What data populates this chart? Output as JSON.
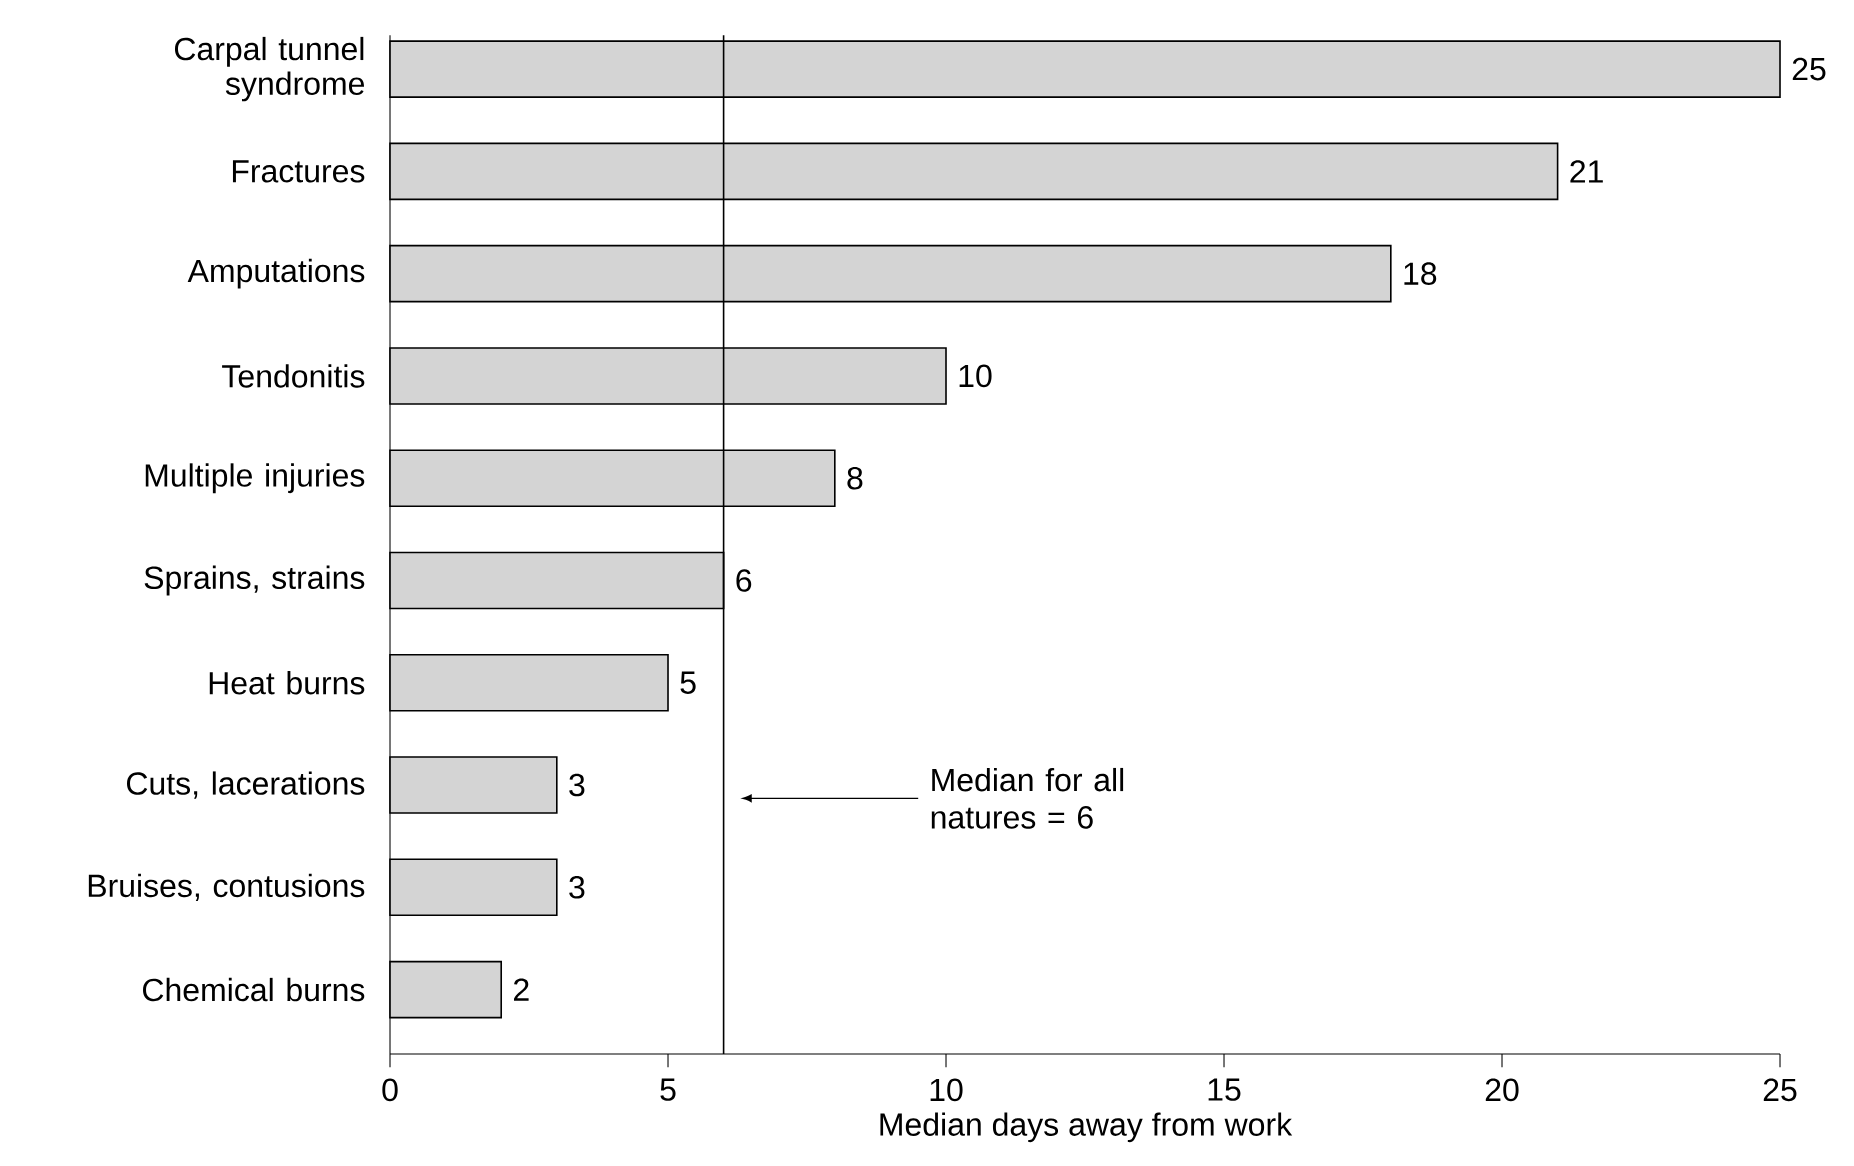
{
  "chart_data": {
    "type": "bar",
    "orientation": "horizontal",
    "xlabel": "Median days away from work",
    "categories": [
      "Carpal tunnel syndrome",
      "Fractures",
      "Amputations",
      "Tendonitis",
      "Multiple injuries",
      "Sprains, strains",
      "Heat burns",
      "Cuts, lacerations",
      "Bruises, contusions",
      "Chemical burns"
    ],
    "values": [
      25,
      21,
      18,
      10,
      8,
      6,
      5,
      3,
      3,
      2
    ],
    "color": "#d4d4d4",
    "data_labels": true,
    "xlim": [
      0,
      25
    ],
    "xticks": [
      0,
      5,
      10,
      15,
      20,
      25
    ],
    "ref_lines": [
      {
        "axis": "x",
        "value": 6,
        "label": "Median for all natures = 6"
      }
    ]
  }
}
